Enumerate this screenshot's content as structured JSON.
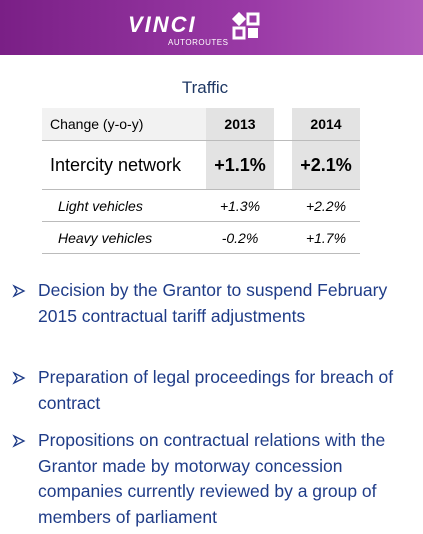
{
  "header": {
    "brand": "VINCI",
    "sub": "AUTOROUTES"
  },
  "title": "Traffic",
  "table": {
    "columns": [
      "Change (y-o-y)",
      "2013",
      "2014"
    ],
    "rows": [
      [
        "Intercity network",
        "+1.1%",
        "+2.1%"
      ],
      [
        "Light vehicles",
        "+1.3%",
        "+2.2%"
      ],
      [
        "Heavy vehicles",
        "-0.2%",
        "+1.7%"
      ]
    ]
  },
  "bullets": [
    "Decision by the Grantor to suspend February 2015 contractual tariff adjustments",
    "Preparation of legal proceedings for breach of contract",
    "Propositions on contractual relations with the Grantor made by motorway concession companies currently reviewed by a group of members of parliament"
  ]
}
